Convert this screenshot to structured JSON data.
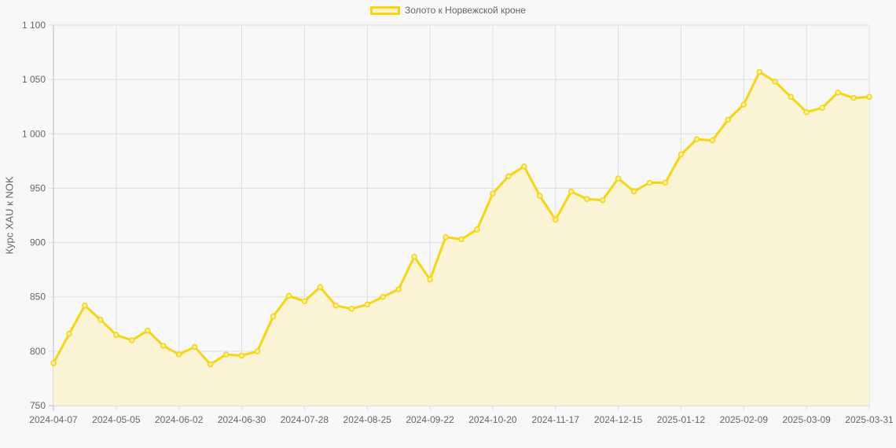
{
  "chart_data": {
    "type": "line",
    "title": "",
    "legend": [
      {
        "label": "Золото к Норвежской кроне",
        "color": "#f5d60f"
      }
    ],
    "legend_position": "top",
    "xlabel": "",
    "ylabel": "Курс XAU к NOK",
    "ylim": [
      750,
      1100
    ],
    "yticks": [
      750,
      800,
      850,
      900,
      950,
      1000,
      1050,
      1100
    ],
    "ytick_labels": [
      "750",
      "800",
      "850",
      "900",
      "950",
      "1 000",
      "1 050",
      "1 100"
    ],
    "xtick_labels": [
      "2024-04-07",
      "2024-05-05",
      "2024-06-02",
      "2024-06-30",
      "2024-07-28",
      "2024-08-25",
      "2024-09-22",
      "2024-10-20",
      "2024-11-17",
      "2024-12-15",
      "2025-01-12",
      "2025-02-09",
      "2025-03-09",
      "2025-03-31"
    ],
    "xtick_indices": [
      0,
      4,
      8,
      12,
      16,
      20,
      24,
      28,
      32,
      36,
      40,
      44,
      48,
      52
    ],
    "grid": true,
    "fill": true,
    "colors": {
      "line": "#f5d60f",
      "fill": "#faf3d6",
      "point_fill": "#fbeea0",
      "grid": "#dddddd",
      "axis": "#bbbbbb"
    },
    "series": [
      {
        "name": "Золото к Норвежской кроне",
        "values": [
          789,
          816,
          842,
          829,
          815,
          810,
          819,
          805,
          797,
          804,
          788,
          797,
          796,
          800,
          832,
          851,
          846,
          859,
          842,
          839,
          843,
          850,
          857,
          887,
          866,
          905,
          903,
          912,
          945,
          961,
          970,
          943,
          921,
          947,
          940,
          939,
          959,
          947,
          955,
          955,
          981,
          995,
          994,
          1013,
          1027,
          1057,
          1048,
          1034,
          1020,
          1024,
          1038,
          1033,
          1034
        ]
      }
    ]
  }
}
